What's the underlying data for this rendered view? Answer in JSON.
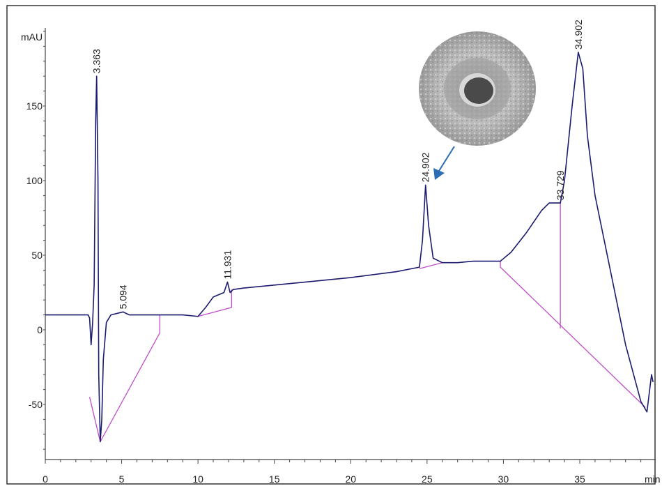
{
  "chart_data": {
    "type": "line",
    "title": "",
    "xlabel": "min",
    "ylabel": "mAU",
    "xlim": [
      0,
      39.8
    ],
    "ylim": [
      -87,
      212
    ],
    "x_ticks": [
      0,
      5,
      10,
      15,
      20,
      25,
      30,
      35
    ],
    "y_ticks": [
      -50,
      0,
      50,
      100,
      150
    ],
    "grid": false,
    "series": [
      {
        "color": "#1a1a6e",
        "points": [
          [
            0,
            10
          ],
          [
            2.8,
            10
          ],
          [
            2.9,
            8
          ],
          [
            3.0,
            -10
          ],
          [
            3.1,
            5
          ],
          [
            3.2,
            30
          ],
          [
            3.3,
            140
          ],
          [
            3.363,
            170
          ],
          [
            3.45,
            100
          ],
          [
            3.5,
            -30
          ],
          [
            3.6,
            -75
          ],
          [
            3.7,
            -60
          ],
          [
            3.8,
            -20
          ],
          [
            4.0,
            5
          ],
          [
            4.3,
            10
          ],
          [
            5.094,
            12
          ],
          [
            5.5,
            10
          ],
          [
            9.0,
            10
          ],
          [
            10,
            9
          ],
          [
            10.5,
            15
          ],
          [
            11,
            22
          ],
          [
            11.7,
            25
          ],
          [
            11.931,
            32
          ],
          [
            12.1,
            25
          ],
          [
            12.3,
            27
          ],
          [
            13,
            28
          ],
          [
            15,
            30
          ],
          [
            17,
            32
          ],
          [
            20,
            35
          ],
          [
            23,
            39
          ],
          [
            24.5,
            42
          ],
          [
            24.7,
            60
          ],
          [
            24.902,
            97
          ],
          [
            25.1,
            70
          ],
          [
            25.4,
            48
          ],
          [
            26,
            45
          ],
          [
            27,
            45
          ],
          [
            28,
            46
          ],
          [
            29,
            46
          ],
          [
            29.8,
            46
          ],
          [
            30.5,
            52
          ],
          [
            31.5,
            65
          ],
          [
            32.5,
            80
          ],
          [
            33,
            85
          ],
          [
            33.729,
            85
          ],
          [
            34.0,
            100
          ],
          [
            34.5,
            150
          ],
          [
            34.902,
            186
          ],
          [
            35.2,
            175
          ],
          [
            35.5,
            130
          ],
          [
            36,
            90
          ],
          [
            37,
            40
          ],
          [
            38,
            -10
          ],
          [
            39,
            -48
          ],
          [
            39.4,
            -55
          ],
          [
            39.7,
            -30
          ],
          [
            39.8,
            -35
          ]
        ]
      }
    ],
    "baselines": {
      "color": "#c04cc8",
      "segments": [
        [
          [
            2.9,
            -45
          ],
          [
            3.6,
            -75
          ]
        ],
        [
          [
            3.6,
            -75
          ],
          [
            7.5,
            -2
          ],
          [
            7.5,
            10
          ]
        ],
        [
          [
            10,
            9
          ],
          [
            12.2,
            15
          ],
          [
            12.2,
            27
          ]
        ],
        [
          [
            24.5,
            41
          ],
          [
            26,
            45
          ]
        ],
        [
          [
            29.8,
            46
          ],
          [
            29.8,
            42
          ],
          [
            39.3,
            -52
          ]
        ],
        [
          [
            33.729,
            85
          ],
          [
            33.729,
            1
          ]
        ]
      ]
    },
    "peak_labels": [
      {
        "label": "3.363",
        "x": 3.363,
        "y": 170
      },
      {
        "label": "5.094",
        "x": 5.094,
        "y": 12
      },
      {
        "label": "11.931",
        "x": 11.931,
        "y": 32
      },
      {
        "label": "24.902",
        "x": 24.902,
        "y": 97
      },
      {
        "label": "33.729",
        "x": 33.729,
        "y": 85
      },
      {
        "label": "34.902",
        "x": 34.902,
        "y": 186
      }
    ],
    "annotation": {
      "type": "inset-image-disc-with-arrow",
      "points_to": 24.902,
      "arrow_color": "#2a6db5"
    }
  }
}
